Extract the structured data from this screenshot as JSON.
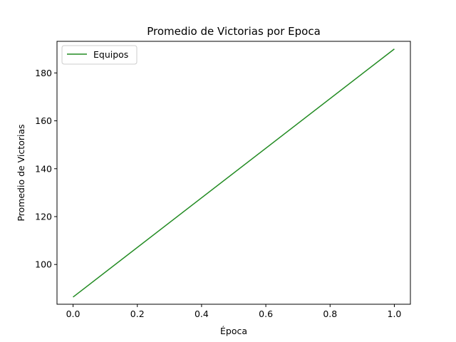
{
  "chart_data": {
    "type": "line",
    "title": "Promedio de Victorias por Epoca",
    "xlabel": "Época",
    "ylabel": "Promedio de Victorias",
    "xlim": [
      -0.05,
      1.05
    ],
    "ylim": [
      83.4,
      193.2
    ],
    "xticks": [
      0.0,
      0.2,
      0.4,
      0.6,
      0.8,
      1.0
    ],
    "xtick_labels": [
      "0.0",
      "0.2",
      "0.4",
      "0.6",
      "0.8",
      "1.0"
    ],
    "yticks": [
      100,
      120,
      140,
      160,
      180
    ],
    "ytick_labels": [
      "100",
      "120",
      "140",
      "160",
      "180"
    ],
    "grid": false,
    "legend_position": "top-left",
    "series": [
      {
        "name": "Equipos",
        "color": "#228b22",
        "x": [
          0.0,
          1.0
        ],
        "y": [
          86.4,
          190.0
        ]
      }
    ]
  }
}
